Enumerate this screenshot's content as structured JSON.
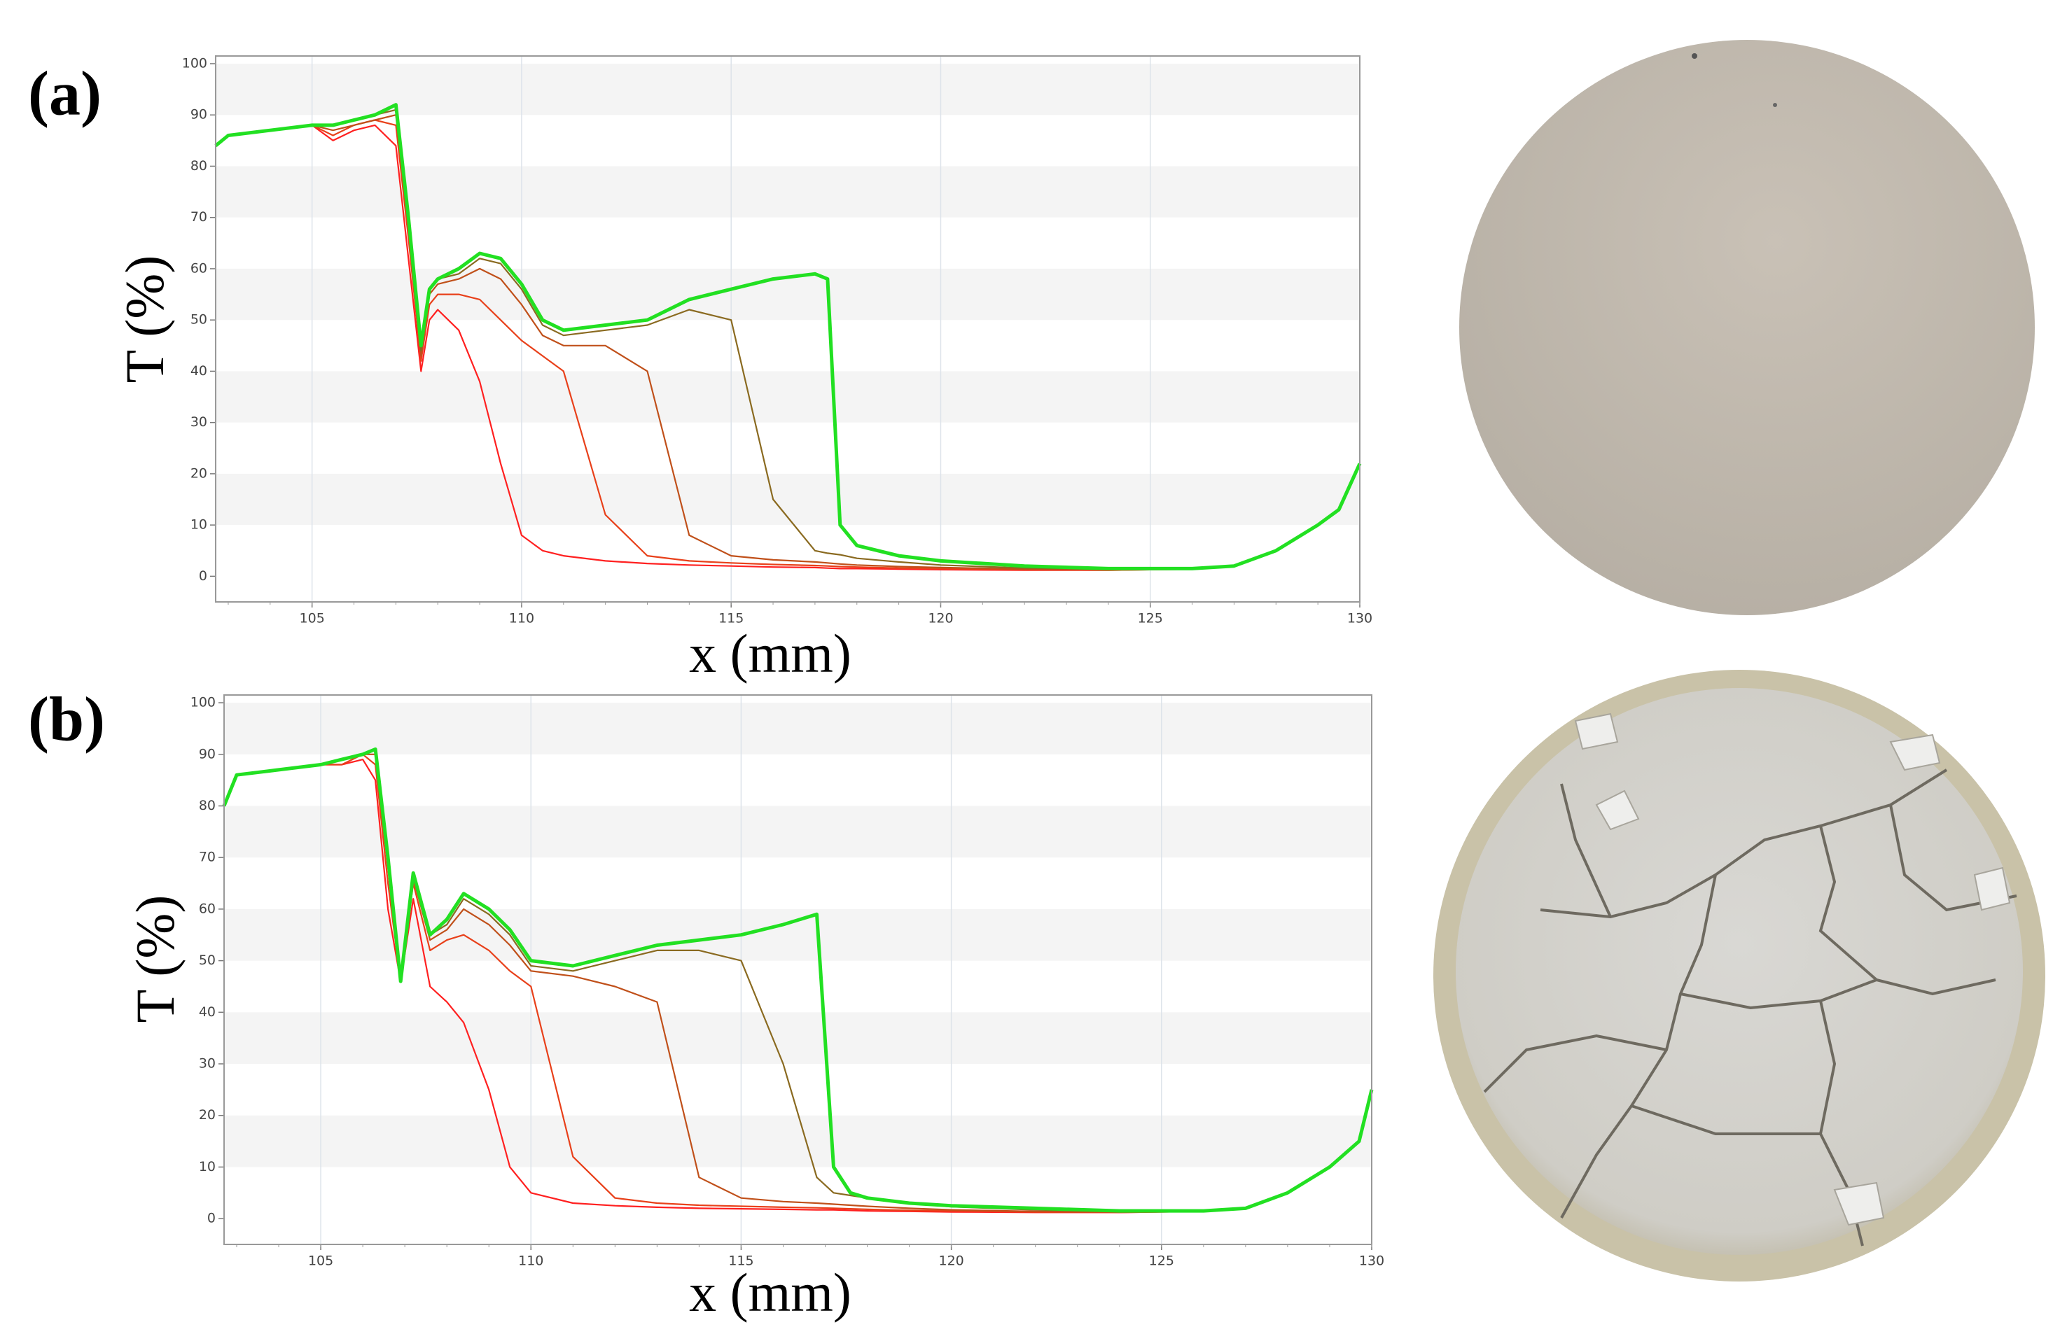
{
  "chart_data": [
    {
      "type": "line",
      "panel_label": "(a)",
      "ylabel": "T (%)",
      "xlabel": "x (mm)",
      "xlim": [
        102.7,
        130
      ],
      "ylim": [
        -5,
        101.5
      ],
      "xticks": [
        105,
        110,
        115,
        120,
        125,
        130
      ],
      "yticks": [
        0,
        10,
        20,
        30,
        40,
        50,
        60,
        70,
        80,
        90,
        100
      ],
      "grid": true,
      "x": [
        102.7,
        103,
        104,
        105,
        105.5,
        106,
        106.5,
        107,
        107.3,
        107.6,
        107.8,
        108,
        108.5,
        109,
        109.5,
        110,
        110.5,
        111,
        112,
        113,
        114,
        115,
        116,
        117,
        117.3,
        117.6,
        118,
        119,
        120,
        122,
        124,
        126,
        127,
        128,
        129,
        129.5,
        130
      ],
      "series": [
        {
          "color": "#ff2020",
          "values": [
            84,
            86,
            87,
            88,
            85,
            87,
            88,
            84,
            62,
            40,
            50,
            52,
            48,
            38,
            22,
            8,
            5,
            4,
            3,
            2.5,
            2.2,
            2,
            1.8,
            1.7,
            1.6,
            1.5,
            1.5,
            1.4,
            1.3,
            1.2,
            1.2,
            1.4,
            2,
            5,
            10,
            13,
            22
          ]
        },
        {
          "color": "#e8401a",
          "values": [
            84,
            86,
            87,
            88,
            86,
            88,
            89,
            88,
            66,
            42,
            53,
            55,
            55,
            54,
            50,
            46,
            43,
            40,
            12,
            4,
            3,
            2.6,
            2.3,
            2.1,
            2,
            1.9,
            1.8,
            1.6,
            1.5,
            1.3,
            1.2,
            1.4,
            2,
            5,
            10,
            13,
            22
          ]
        },
        {
          "color": "#c0501a",
          "values": [
            84,
            86,
            87,
            88,
            87,
            88,
            89,
            90,
            68,
            43,
            55,
            57,
            58,
            60,
            58,
            53,
            47,
            45,
            45,
            40,
            8,
            4,
            3.2,
            2.8,
            2.6,
            2.4,
            2.2,
            1.9,
            1.7,
            1.4,
            1.3,
            1.4,
            2,
            5,
            10,
            13,
            22
          ]
        },
        {
          "color": "#8a6a20",
          "values": [
            84,
            86,
            87,
            88,
            88,
            89,
            90,
            91,
            69,
            44,
            56,
            58,
            59,
            62,
            61,
            56,
            49,
            47,
            48,
            49,
            52,
            50,
            15,
            5,
            4.5,
            4.2,
            3.5,
            2.8,
            2.2,
            1.6,
            1.4,
            1.5,
            2,
            5,
            10,
            13,
            22
          ]
        },
        {
          "color": "#22e022",
          "values": [
            84,
            86,
            87,
            88,
            88,
            89,
            90,
            92,
            70,
            45,
            56,
            58,
            60,
            63,
            62,
            57,
            50,
            48,
            49,
            50,
            54,
            56,
            58,
            59,
            58,
            10,
            6,
            4,
            3,
            2,
            1.5,
            1.5,
            2,
            5,
            10,
            13,
            22
          ]
        }
      ]
    },
    {
      "type": "line",
      "panel_label": "(b)",
      "ylabel": "T (%)",
      "xlabel": "x (mm)",
      "xlim": [
        102.7,
        130
      ],
      "ylim": [
        -5,
        101.5
      ],
      "xticks": [
        105,
        110,
        115,
        120,
        125,
        130
      ],
      "yticks": [
        0,
        10,
        20,
        30,
        40,
        50,
        60,
        70,
        80,
        90,
        100
      ],
      "grid": true,
      "x": [
        102.7,
        103,
        104,
        105,
        105.5,
        106,
        106.3,
        106.6,
        106.9,
        107.2,
        107.6,
        108,
        108.4,
        109,
        109.5,
        110,
        111,
        112,
        113,
        114,
        115,
        116,
        116.8,
        117.2,
        117.6,
        118,
        119,
        120,
        122,
        124,
        126,
        127,
        128,
        129,
        129.7,
        130
      ],
      "series": [
        {
          "color": "#ff2020",
          "values": [
            80,
            86,
            87,
            88,
            88,
            89,
            85,
            60,
            46,
            62,
            45,
            42,
            38,
            25,
            10,
            5,
            3,
            2.5,
            2.2,
            2,
            1.9,
            1.8,
            1.7,
            1.7,
            1.6,
            1.5,
            1.4,
            1.3,
            1.2,
            1.2,
            1.4,
            2,
            5,
            10,
            15,
            25
          ]
        },
        {
          "color": "#e8401a",
          "values": [
            80,
            86,
            87,
            88,
            88,
            90,
            88,
            65,
            46,
            65,
            52,
            54,
            55,
            52,
            48,
            45,
            12,
            4,
            3,
            2.6,
            2.4,
            2.2,
            2.1,
            2,
            1.9,
            1.8,
            1.6,
            1.5,
            1.3,
            1.2,
            1.4,
            2,
            5,
            10,
            15,
            25
          ]
        },
        {
          "color": "#c0501a",
          "values": [
            80,
            86,
            87,
            88,
            89,
            90,
            90,
            68,
            46,
            66,
            54,
            56,
            60,
            57,
            53,
            48,
            47,
            45,
            42,
            8,
            4,
            3.3,
            3,
            2.8,
            2.6,
            2.4,
            2,
            1.7,
            1.4,
            1.3,
            1.4,
            2,
            5,
            10,
            15,
            25
          ]
        },
        {
          "color": "#8a6a20",
          "values": [
            80,
            86,
            87,
            88,
            89,
            90,
            91,
            69,
            46,
            67,
            55,
            57,
            62,
            59,
            55,
            49,
            48,
            50,
            52,
            52,
            50,
            30,
            8,
            5,
            4.5,
            4,
            3,
            2.3,
            1.7,
            1.4,
            1.5,
            2,
            5,
            10,
            15,
            25
          ]
        },
        {
          "color": "#22e022",
          "values": [
            80,
            86,
            87,
            88,
            89,
            90,
            91,
            70,
            46,
            67,
            55,
            58,
            63,
            60,
            56,
            50,
            49,
            51,
            53,
            54,
            55,
            57,
            59,
            10,
            5,
            4,
            3,
            2.5,
            2,
            1.5,
            1.5,
            2,
            5,
            10,
            15,
            25
          ]
        }
      ]
    }
  ]
}
